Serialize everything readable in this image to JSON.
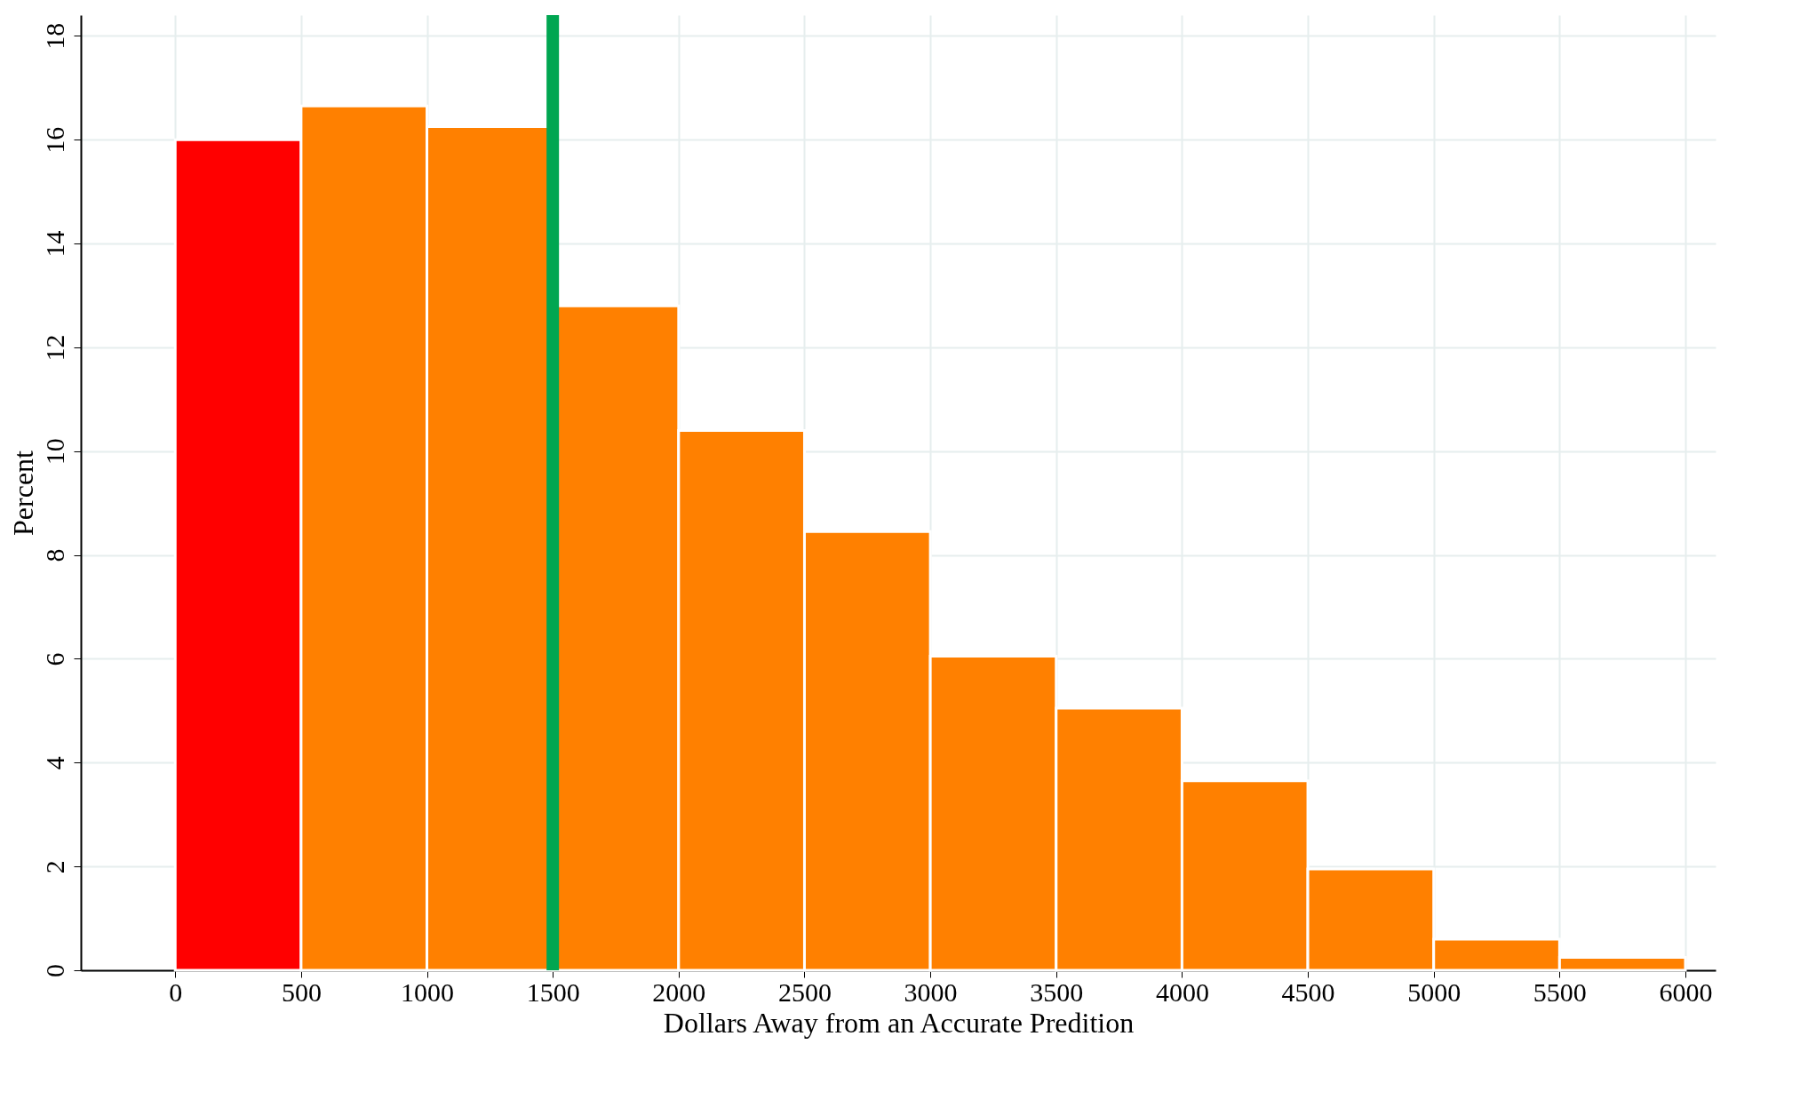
{
  "chart_data": {
    "type": "histogram",
    "xlabel": "Dollars Away from an Accurate Predition",
    "ylabel": "Percent",
    "bins": [
      0,
      500,
      1000,
      1500,
      2000,
      2500,
      3000,
      3500,
      4000,
      4500,
      5000,
      5500,
      6000
    ],
    "values": [
      16.0,
      16.65,
      16.25,
      12.8,
      10.4,
      8.45,
      6.05,
      5.05,
      3.65,
      1.95,
      0.6,
      0.25
    ],
    "colors": [
      "#ff0000",
      "#ff8000",
      "#ff8000",
      "#ff8000",
      "#ff8000",
      "#ff8000",
      "#ff8000",
      "#ff8000",
      "#ff8000",
      "#ff8000",
      "#ff8000",
      "#ff8000"
    ],
    "xlim": [
      -375,
      6120
    ],
    "ylim": [
      0,
      18.4
    ],
    "xticks": [
      0,
      500,
      1000,
      1500,
      2000,
      2500,
      3000,
      3500,
      4000,
      4500,
      5000,
      5500,
      6000
    ],
    "yticks": [
      0,
      2,
      4,
      6,
      8,
      10,
      12,
      14,
      16,
      18
    ],
    "grid": true,
    "ref_lines": [
      {
        "axis": "x",
        "value": 1500,
        "color": "#00a651"
      }
    ]
  }
}
